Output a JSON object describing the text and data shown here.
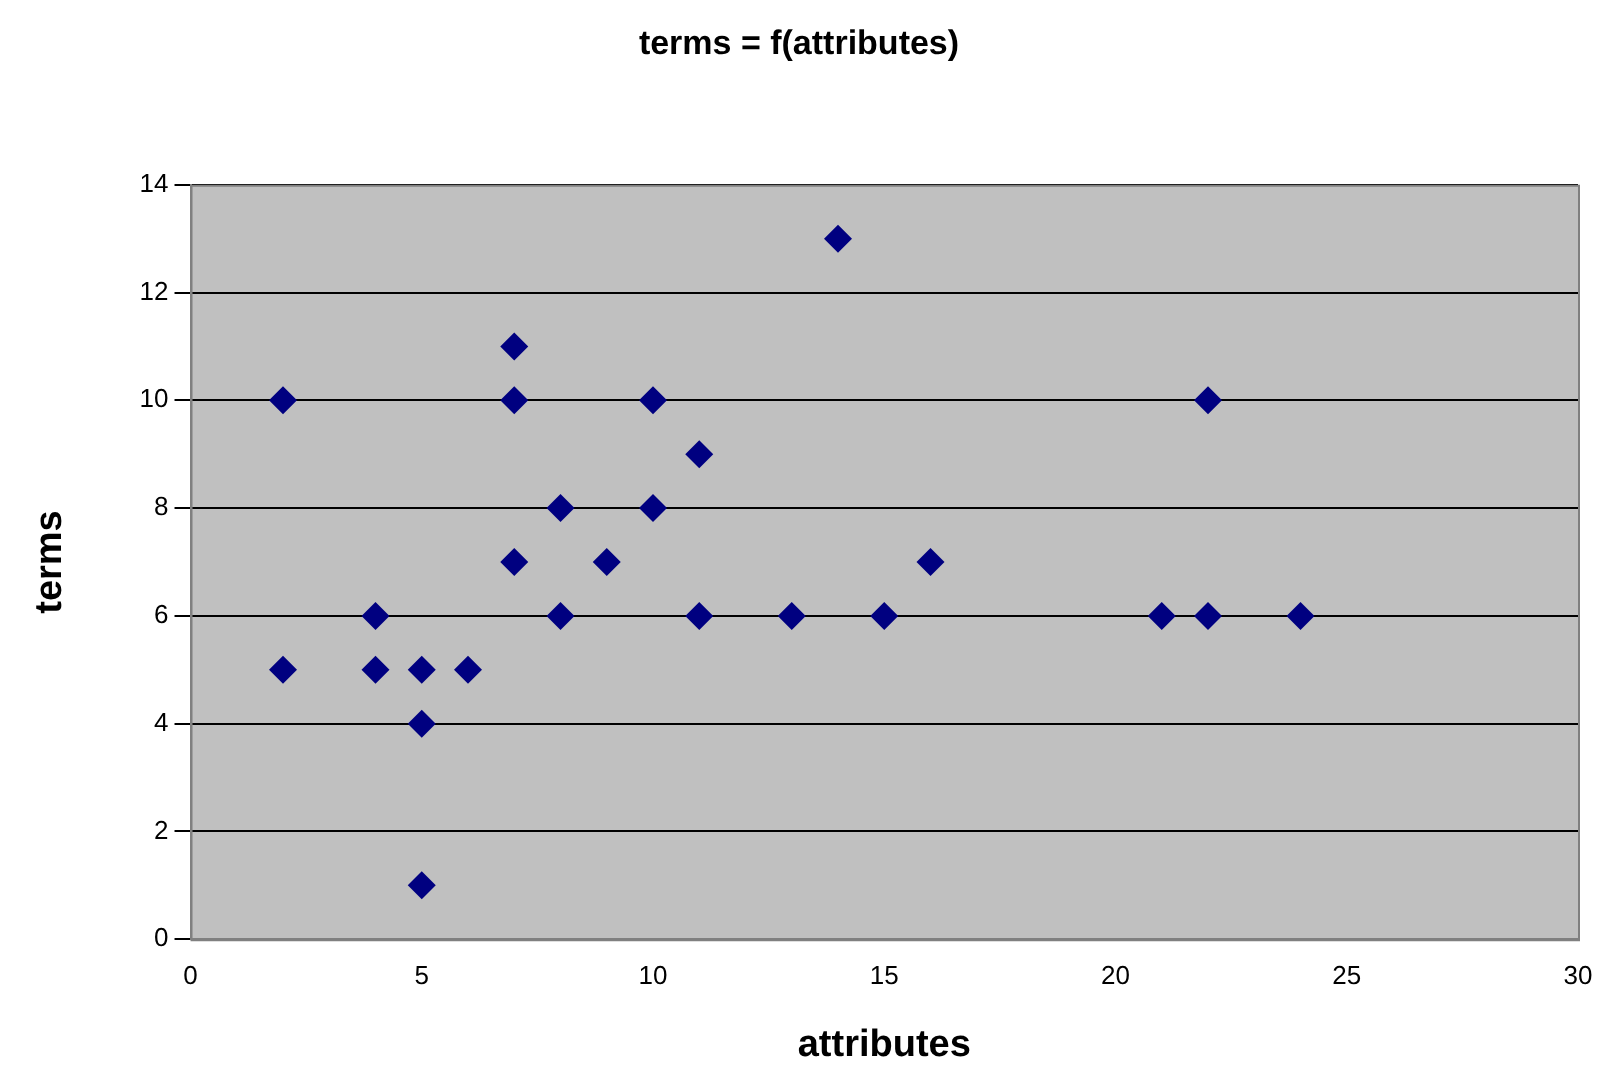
{
  "chart_data": {
    "type": "scatter",
    "title": "terms = f(attributes)",
    "xlabel": "attributes",
    "ylabel": "terms",
    "x": [
      2,
      2,
      4,
      4,
      5,
      5,
      5,
      6,
      7,
      7,
      7,
      8,
      8,
      9,
      10,
      10,
      11,
      11,
      13,
      14,
      15,
      16,
      21,
      22,
      22,
      24
    ],
    "series": [
      {
        "color": "#000080",
        "values": [
          10,
          5,
          6,
          5,
          5,
          4,
          1,
          5,
          11,
          10,
          7,
          8,
          6,
          7,
          10,
          8,
          9,
          6,
          6,
          13,
          6,
          7,
          6,
          10,
          6,
          6
        ]
      }
    ],
    "xlim": [
      0,
      30
    ],
    "xticks": [
      0,
      5,
      10,
      15,
      20,
      25,
      30
    ],
    "ylim": [
      0,
      14
    ],
    "yticks": [
      0,
      2,
      4,
      6,
      8,
      10,
      12,
      14
    ],
    "grid": "y",
    "legend": false,
    "marker": "diamond"
  }
}
